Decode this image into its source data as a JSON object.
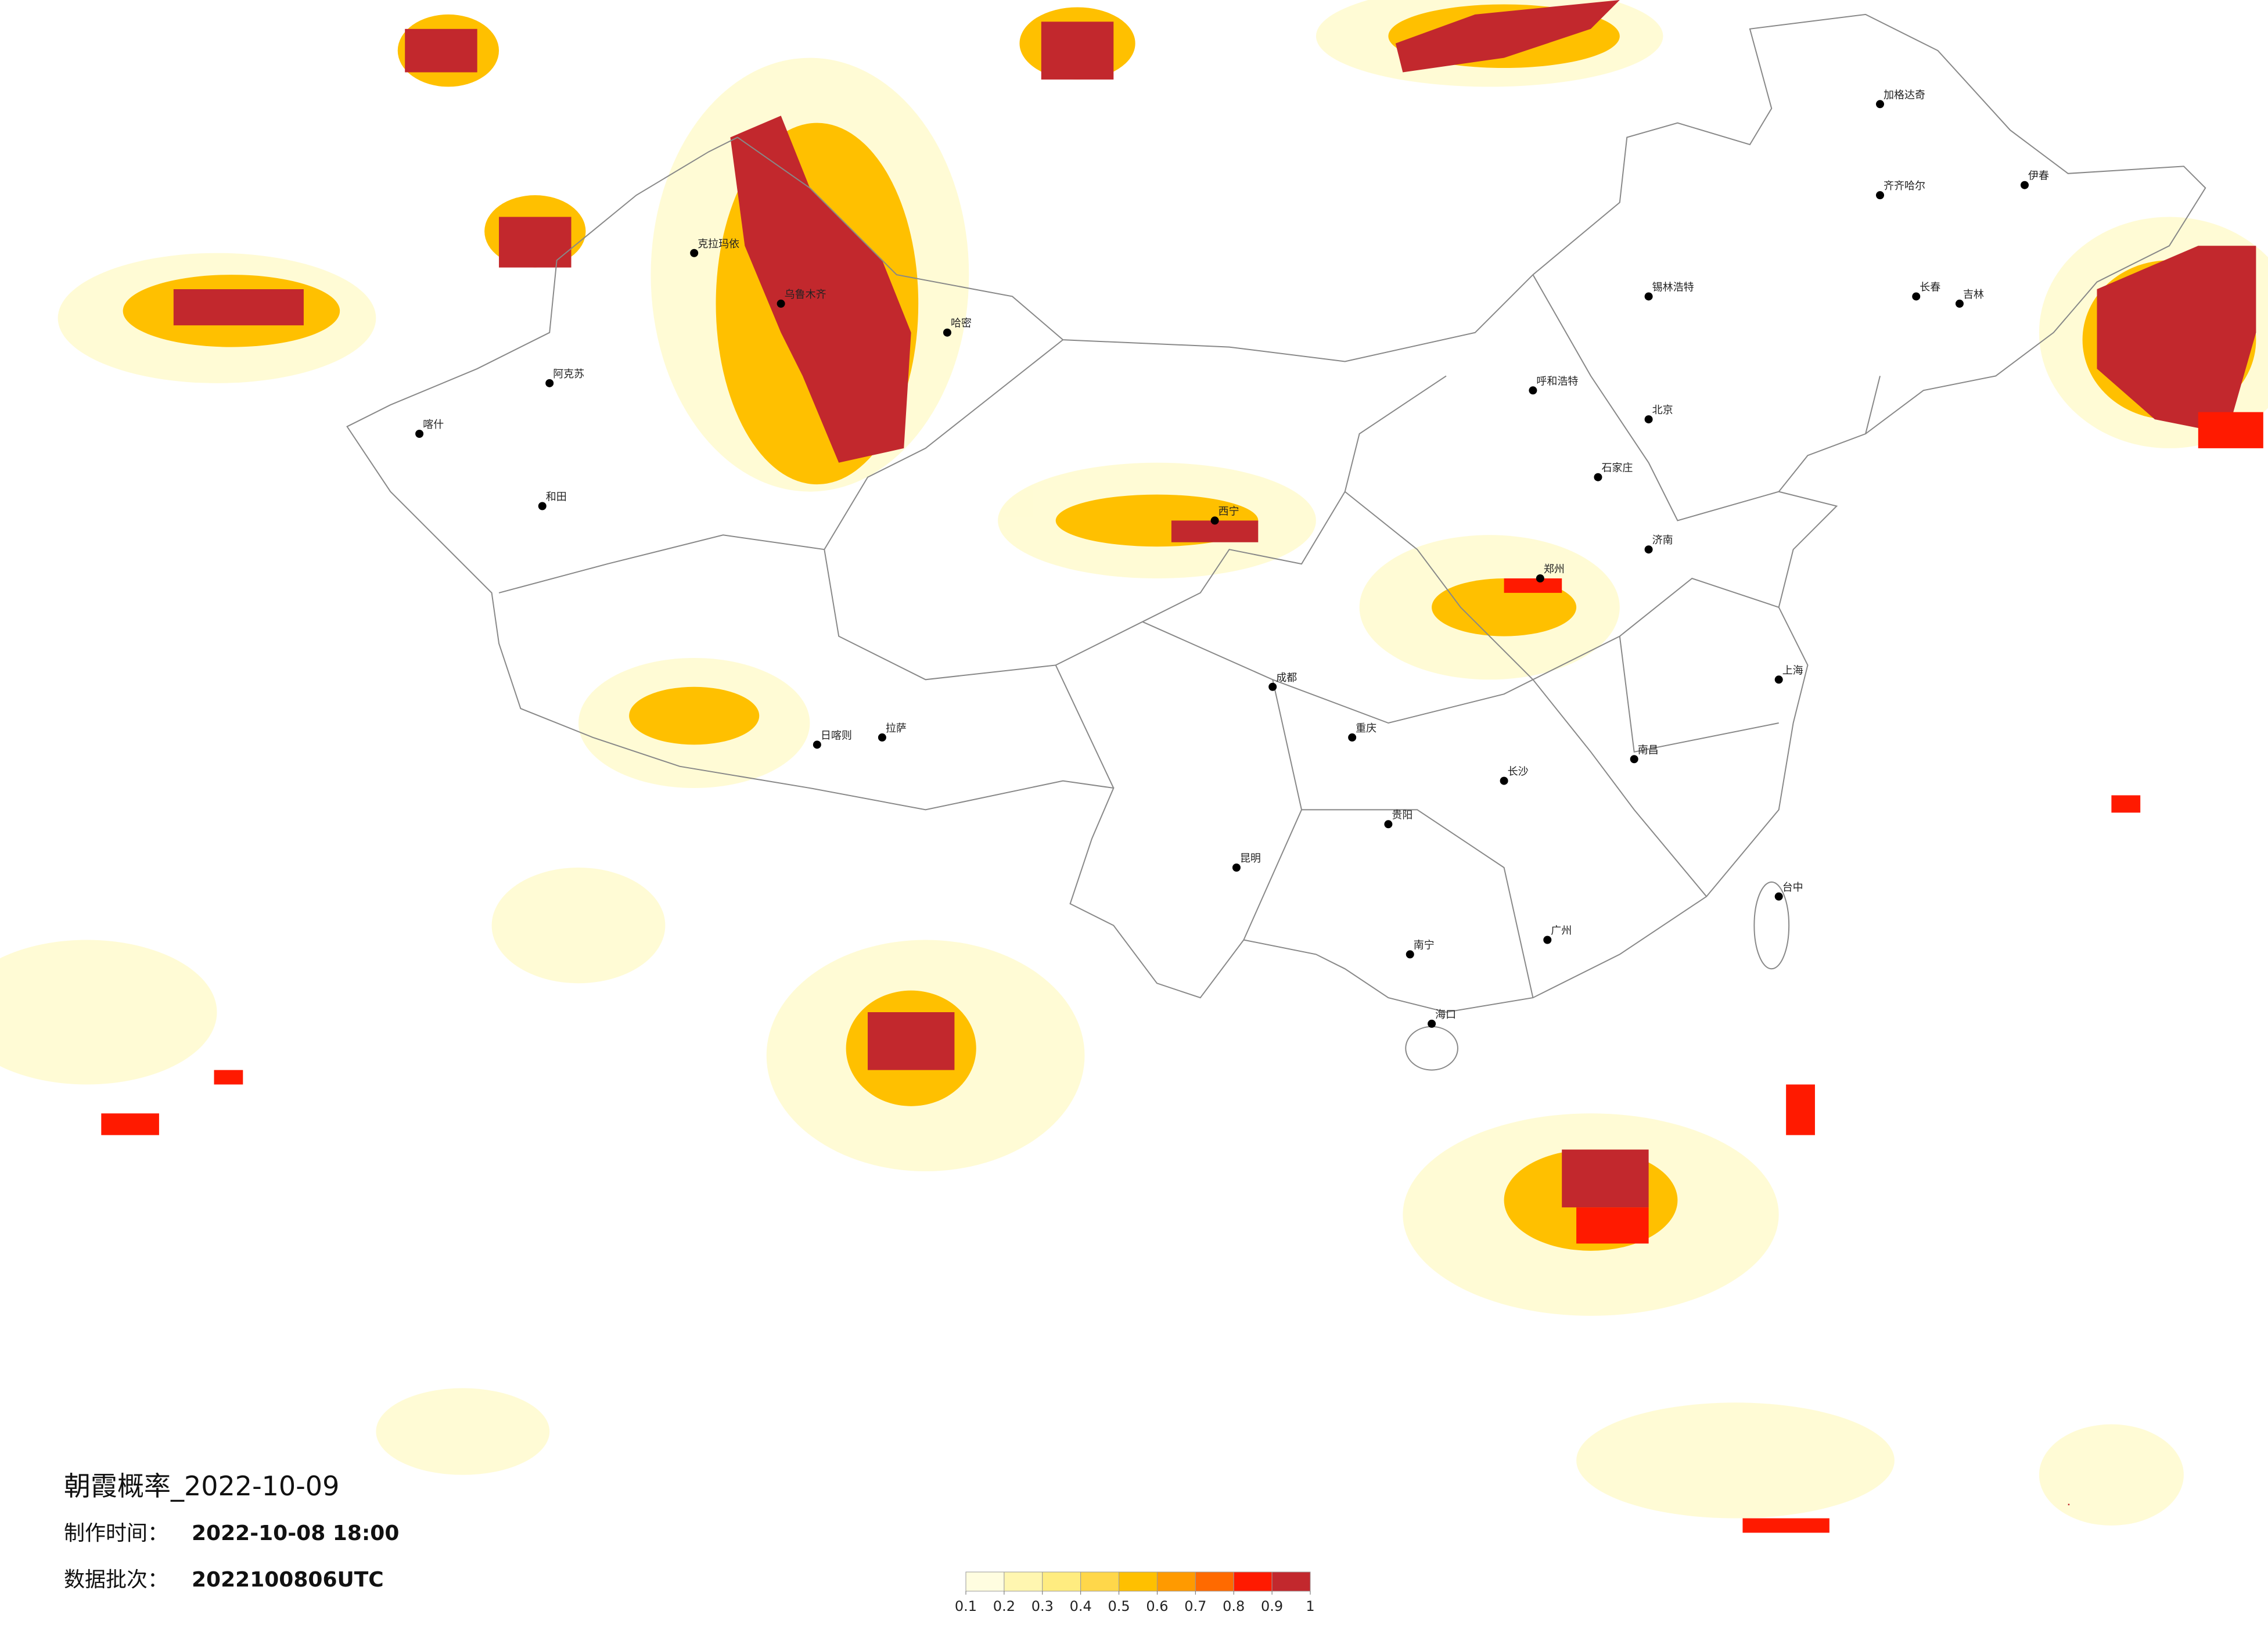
{
  "title": "朝霞概率_2022-10-09",
  "made_label": "制作时间：",
  "made_time": "2022-10-08 18:00",
  "batch_label": "数据批次：",
  "batch": "2022100806UTC",
  "legend": {
    "ticks": [
      0.1,
      0.2,
      0.3,
      0.4,
      0.5,
      0.6,
      0.7,
      0.8,
      0.9,
      1
    ],
    "colors": [
      "#fffde0",
      "#fff6b0",
      "#ffec80",
      "#ffd74a",
      "#ffc000",
      "#ff9a00",
      "#ff6a00",
      "#ff1a00",
      "#c2282d"
    ]
  },
  "cities": [
    "北京",
    "石家庄",
    "呼和浩特",
    "锡林浩特",
    "齐齐哈尔",
    "加格达奇",
    "伊春",
    "长春",
    "吉林",
    "哈密",
    "乌鲁木齐",
    "克拉玛依",
    "阿克苏",
    "和田",
    "喀什",
    "拉萨",
    "日喀则",
    "西宁",
    "成都",
    "重庆",
    "贵阳",
    "昆明",
    "南宁",
    "海口",
    "长沙",
    "南昌",
    "郑州",
    "济南",
    "上海",
    "台中",
    "广州"
  ]
}
